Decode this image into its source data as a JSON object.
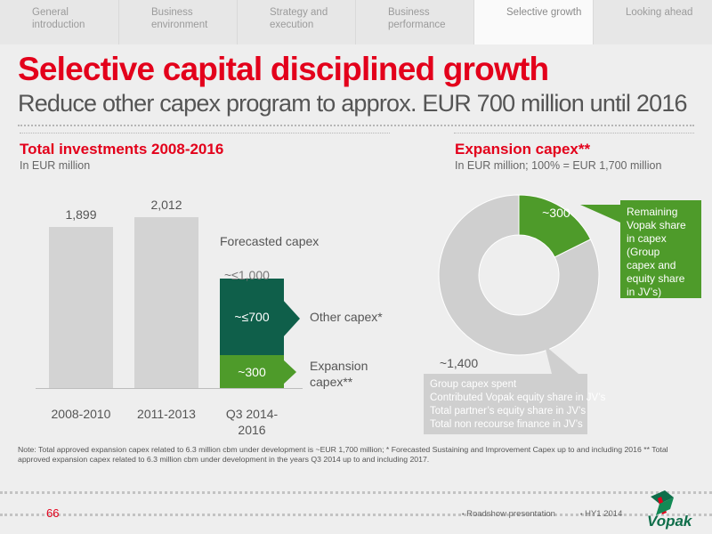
{
  "nav": {
    "tabs": [
      {
        "label": "General introduction"
      },
      {
        "label": "Business environment"
      },
      {
        "label": "Strategy and execution"
      },
      {
        "label": "Business performance"
      },
      {
        "label": "Selective growth"
      },
      {
        "label": "Looking ahead"
      }
    ],
    "active_index": 4
  },
  "header": {
    "title": "Selective capital disciplined growth",
    "subtitle": "Reduce other capex program to approx. EUR 700 million until 2016"
  },
  "left_section": {
    "title": "Total investments 2008-2016",
    "unit": "In EUR million",
    "forecast_label": "Forecasted capex",
    "forecast_total": "~≤1,000",
    "other_capex_label": "Other capex*",
    "expansion_capex_label_1": "Expansion",
    "expansion_capex_label_2": "capex**"
  },
  "right_section": {
    "title": "Expansion capex**",
    "unit": "In EUR million; 100% = EUR 1,700 million",
    "callout_top": [
      "Remaining",
      "Vopak share",
      "in capex",
      "(Group",
      "capex and",
      "equity share",
      "in JV’s)"
    ],
    "callout_bottom": [
      "Group capex spent",
      "Contributed Vopak equity share in JV’s",
      "Total partner’s equity share in JV’s",
      "Total non recourse finance in JV’s"
    ]
  },
  "colors": {
    "brand_red": "#e3001b",
    "dark_green": "#0f5f4a",
    "light_green": "#4e9b2a",
    "bar_grey": "#d3d3d3",
    "donut_grey": "#cfcfcf"
  },
  "chart_data": [
    {
      "type": "bar",
      "title": "Total investments 2008-2016",
      "ylabel": "In EUR million",
      "categories": [
        "2008-2010",
        "2011-2013",
        "Q3 2014-2016"
      ],
      "series": [
        {
          "name": "Other capex*",
          "values": [
            null,
            null,
            700
          ],
          "label": "~≤700",
          "color": "#0f5f4a"
        },
        {
          "name": "Expansion capex**",
          "values": [
            null,
            null,
            300
          ],
          "label": "~300",
          "color": "#4e9b2a"
        },
        {
          "values": [
            1899,
            2012,
            null
          ],
          "labels": [
            "1,899",
            "2,012",
            ""
          ],
          "color": "#d3d3d3"
        }
      ],
      "ylim": [
        0,
        2250
      ]
    },
    {
      "type": "pie",
      "title": "Expansion capex**",
      "subtitle": "In EUR million; 100% = EUR 1,700 million",
      "donut": true,
      "slices": [
        {
          "label": "~300",
          "value": 300,
          "color": "#4e9b2a"
        },
        {
          "label": "~1,400",
          "value": 1400,
          "color": "#cfcfcf"
        }
      ]
    }
  ],
  "footer": {
    "page": "66",
    "doc": "Roadshow presentation",
    "period": "HY1 2014",
    "brand": "Vopak"
  },
  "note": "Note: Total approved expansion capex related to 6.3 million cbm under development is ~EUR 1,700 million; * Forecasted Sustaining and Improvement Capex up to and including 2016 ** Total approved expansion capex related to 6.3 million cbm under development in the years Q3 2014 up to and including 2017."
}
